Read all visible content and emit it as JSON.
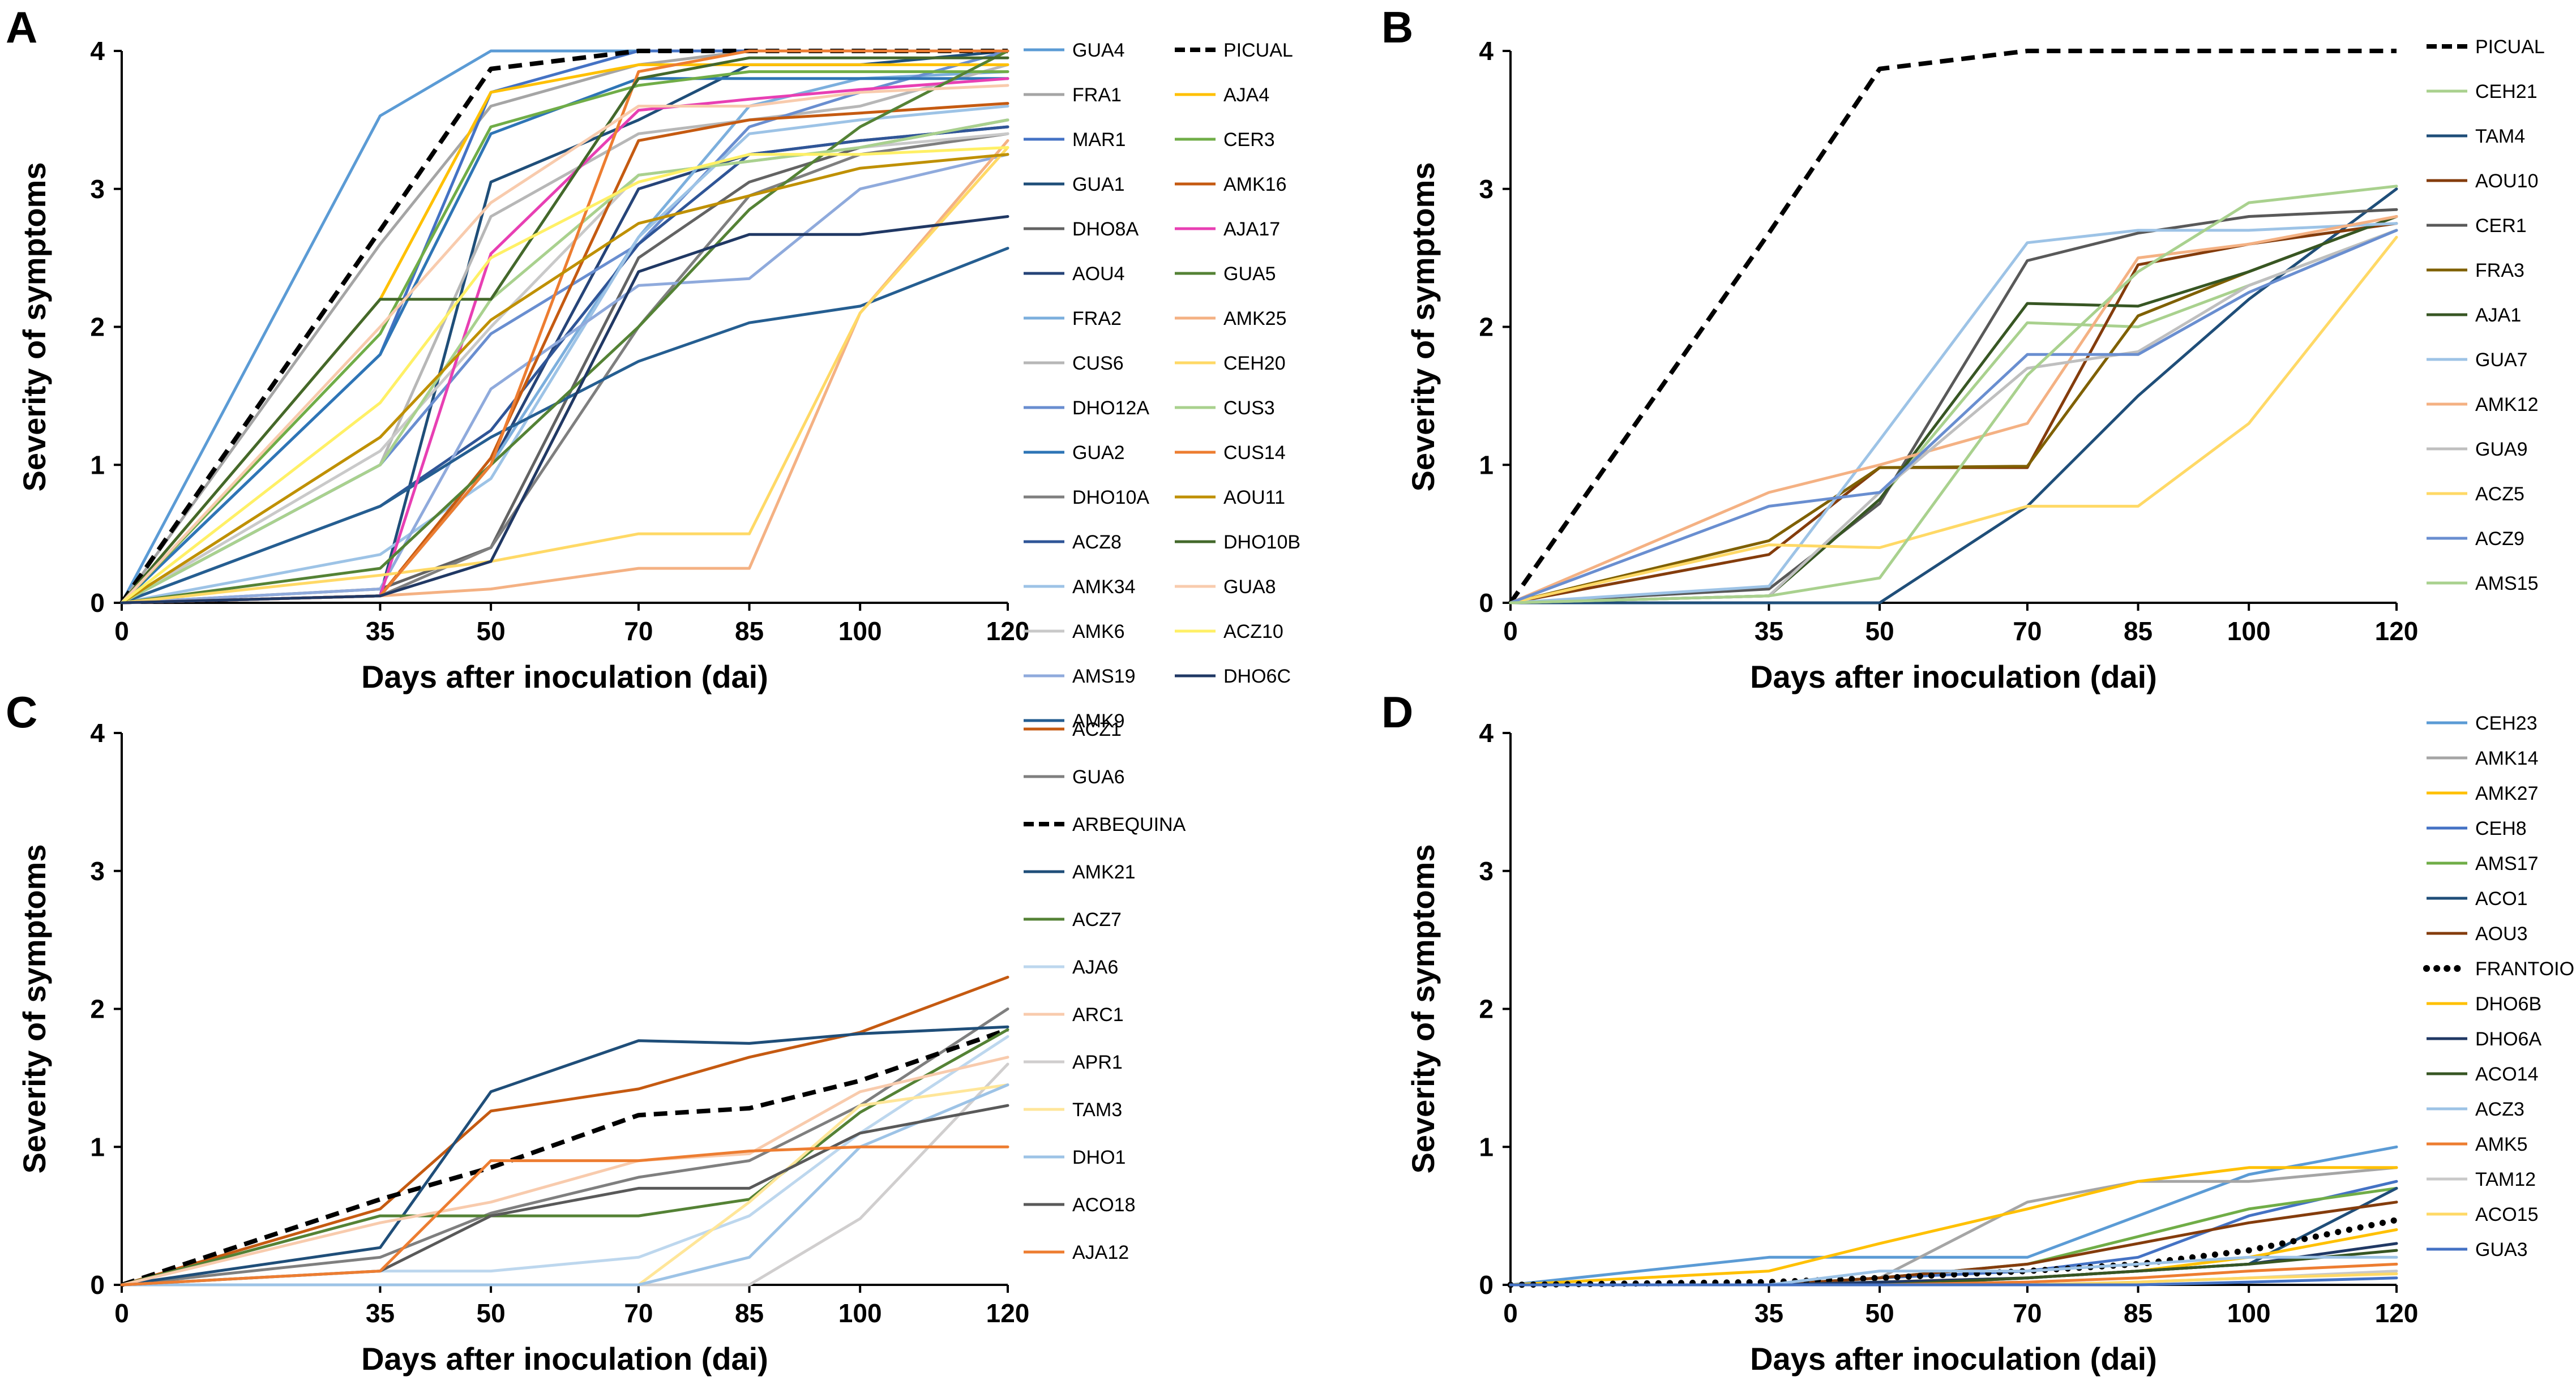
{
  "figure": {
    "xlabel": "Days after inoculation (dai)",
    "ylabel": "Severity of symptoms",
    "x_ticks": [
      "0",
      "35",
      "50",
      "70",
      "85",
      "100",
      "120"
    ],
    "y_ticks": [
      "0",
      "1",
      "2",
      "3",
      "4"
    ]
  },
  "chart_data": [
    {
      "panel": "A",
      "type": "line",
      "x": [
        0,
        35,
        50,
        70,
        85,
        100,
        120
      ],
      "ylim": [
        0,
        4
      ],
      "xlabel": "Days after inoculation (dai)",
      "ylabel": "Severity of symptoms",
      "legend_columns": 2,
      "series": [
        {
          "name": "GUA4",
          "color": "#5b9bd5",
          "values": [
            0,
            3.53,
            4,
            4,
            4,
            4,
            4
          ]
        },
        {
          "name": "FRA1",
          "color": "#a5a5a5",
          "values": [
            0,
            2.6,
            3.6,
            3.9,
            4,
            4,
            4
          ]
        },
        {
          "name": "MAR1",
          "color": "#4472c4",
          "values": [
            0,
            1.8,
            3.7,
            4,
            4,
            4,
            4
          ]
        },
        {
          "name": "GUA1",
          "color": "#1f4e79",
          "values": [
            0,
            0.05,
            3.05,
            3.5,
            3.9,
            3.9,
            4
          ]
        },
        {
          "name": "DHO8A",
          "color": "#636363",
          "values": [
            0,
            0.1,
            0.4,
            2.5,
            3.05,
            3.3,
            3.5
          ]
        },
        {
          "name": "AOU4",
          "color": "#264478",
          "values": [
            0,
            0.05,
            1.0,
            3.0,
            3.25,
            3.35,
            3.45
          ]
        },
        {
          "name": "FRA2",
          "color": "#7cafdd",
          "values": [
            0,
            0.05,
            1.0,
            2.65,
            3.6,
            3.8,
            3.85
          ]
        },
        {
          "name": "CUS6",
          "color": "#b7b7b7",
          "values": [
            0,
            1.0,
            2.8,
            3.4,
            3.5,
            3.6,
            3.9
          ]
        },
        {
          "name": "DHO12A",
          "color": "#698ed0",
          "values": [
            0,
            1.0,
            1.95,
            2.6,
            3.45,
            3.7,
            4
          ]
        },
        {
          "name": "GUA2",
          "color": "#2e75b6",
          "values": [
            0,
            1.8,
            3.4,
            3.8,
            3.8,
            3.8,
            3.8
          ]
        },
        {
          "name": "DHO10A",
          "color": "#7f7f7f",
          "values": [
            0,
            0.05,
            0.4,
            2.0,
            2.95,
            3.25,
            3.4
          ]
        },
        {
          "name": "ACZ8",
          "color": "#2f5597",
          "values": [
            0,
            0.7,
            1.25,
            2.6,
            3.25,
            3.35,
            3.45
          ]
        },
        {
          "name": "AMK34",
          "color": "#9dc3e6",
          "values": [
            0,
            0.35,
            0.9,
            2.65,
            3.4,
            3.5,
            3.6
          ]
        },
        {
          "name": "AMK6",
          "color": "#c9c9c9",
          "values": [
            0,
            1.1,
            2.0,
            3.1,
            3.2,
            3.3,
            3.4
          ]
        },
        {
          "name": "AMS19",
          "color": "#8faadc",
          "values": [
            0,
            0.1,
            1.55,
            2.3,
            2.35,
            3.0,
            3.25
          ]
        },
        {
          "name": "AMK9",
          "color": "#255e91",
          "values": [
            0,
            0.7,
            1.2,
            1.75,
            2.03,
            2.15,
            2.57
          ]
        },
        {
          "name": "PICUAL",
          "color": "#000000",
          "dash": "dashed",
          "values": [
            0,
            2.7,
            3.87,
            4,
            4,
            4,
            4
          ]
        },
        {
          "name": "AJA4",
          "color": "#ffc000",
          "values": [
            0,
            2.2,
            3.7,
            3.9,
            3.9,
            3.9,
            3.9
          ]
        },
        {
          "name": "CER3",
          "color": "#70ad47",
          "values": [
            0,
            1.95,
            3.45,
            3.75,
            3.85,
            3.85,
            3.85
          ]
        },
        {
          "name": "AMK16",
          "color": "#c55a11",
          "values": [
            0,
            0.05,
            1.05,
            3.35,
            3.5,
            3.55,
            3.62
          ]
        },
        {
          "name": "AJA17",
          "color": "#e83fb3",
          "values": [
            0,
            0.05,
            2.53,
            3.57,
            3.65,
            3.72,
            3.8
          ]
        },
        {
          "name": "GUA5",
          "color": "#548235",
          "values": [
            0,
            0.25,
            1.0,
            2.0,
            2.85,
            3.45,
            4
          ]
        },
        {
          "name": "AMK25",
          "color": "#f4b183",
          "values": [
            0,
            0.05,
            0.1,
            0.25,
            0.25,
            2.1,
            3.35
          ]
        },
        {
          "name": "CEH20",
          "color": "#ffd966",
          "values": [
            0,
            0.2,
            0.3,
            0.5,
            0.5,
            2.1,
            3.3
          ]
        },
        {
          "name": "CUS3",
          "color": "#a9d18e",
          "values": [
            0,
            1.0,
            2.2,
            3.1,
            3.2,
            3.3,
            3.5
          ]
        },
        {
          "name": "CUS14",
          "color": "#ed7d31",
          "values": [
            0,
            0.05,
            1.0,
            3.85,
            4,
            4,
            4
          ]
        },
        {
          "name": "AOU11",
          "color": "#bf9000",
          "values": [
            0,
            1.2,
            2.05,
            2.75,
            2.95,
            3.15,
            3.25
          ]
        },
        {
          "name": "DHO10B",
          "color": "#43682b",
          "values": [
            0,
            2.2,
            2.2,
            3.8,
            3.95,
            3.95,
            3.95
          ]
        },
        {
          "name": "GUA8",
          "color": "#f8cbad",
          "values": [
            0,
            2.0,
            2.9,
            3.6,
            3.6,
            3.7,
            3.75
          ]
        },
        {
          "name": "ACZ10",
          "color": "#fff066",
          "values": [
            0,
            1.45,
            2.5,
            3.05,
            3.25,
            3.25,
            3.3
          ]
        },
        {
          "name": "DHO6C",
          "color": "#203864",
          "values": [
            0,
            0.05,
            0.3,
            2.4,
            2.67,
            2.67,
            2.8
          ]
        }
      ]
    },
    {
      "panel": "B",
      "type": "line",
      "x": [
        0,
        35,
        50,
        70,
        85,
        100,
        120
      ],
      "ylim": [
        0,
        4
      ],
      "xlabel": "Days after inoculation (dai)",
      "ylabel": "Severity of symptoms",
      "legend_columns": 1,
      "series": [
        {
          "name": "PICUAL",
          "color": "#000000",
          "dash": "dashed",
          "values": [
            0,
            2.68,
            3.87,
            4,
            4,
            4,
            4
          ]
        },
        {
          "name": "CEH21",
          "color": "#a9d18e",
          "values": [
            0,
            0.05,
            0.75,
            2.03,
            2.0,
            2.3,
            2.7
          ]
        },
        {
          "name": "TAM4",
          "color": "#1f4e79",
          "values": [
            0,
            0,
            0,
            0.7,
            1.5,
            2.2,
            3.0
          ]
        },
        {
          "name": "AOU10",
          "color": "#843c0c",
          "values": [
            0,
            0.35,
            0.98,
            0.98,
            2.45,
            2.6,
            2.75
          ]
        },
        {
          "name": "CER1",
          "color": "#595959",
          "values": [
            0,
            0.1,
            0.72,
            2.48,
            2.68,
            2.8,
            2.85
          ]
        },
        {
          "name": "FRA3",
          "color": "#7f6000",
          "values": [
            0,
            0.45,
            0.98,
            0.99,
            2.08,
            2.4,
            2.8
          ]
        },
        {
          "name": "AJA1",
          "color": "#375623",
          "values": [
            0,
            0.05,
            0.75,
            2.17,
            2.15,
            2.4,
            2.8
          ]
        },
        {
          "name": "GUA7",
          "color": "#9dc3e6",
          "values": [
            0,
            0.12,
            1.18,
            2.61,
            2.7,
            2.7,
            2.75
          ]
        },
        {
          "name": "AMK12",
          "color": "#f4b183",
          "values": [
            0,
            0.8,
            1.0,
            1.3,
            2.5,
            2.6,
            2.8
          ]
        },
        {
          "name": "GUA9",
          "color": "#bfbfbf",
          "values": [
            0,
            0.05,
            0.8,
            1.7,
            1.82,
            2.3,
            2.7
          ]
        },
        {
          "name": "ACZ5",
          "color": "#ffd966",
          "values": [
            0,
            0.42,
            0.4,
            0.7,
            0.7,
            1.3,
            2.65
          ]
        },
        {
          "name": "ACZ9",
          "color": "#698ed0",
          "values": [
            0,
            0.7,
            0.8,
            1.8,
            1.8,
            2.25,
            2.7
          ]
        },
        {
          "name": "AMS15",
          "color": "#a9d18e",
          "values": [
            0,
            0.05,
            0.18,
            1.65,
            2.4,
            2.9,
            3.02
          ]
        }
      ]
    },
    {
      "panel": "C",
      "type": "line",
      "x": [
        0,
        35,
        50,
        70,
        85,
        100,
        120
      ],
      "ylim": [
        0,
        4
      ],
      "xlabel": "Days after inoculation (dai)",
      "ylabel": "Severity of symptoms",
      "legend_columns": 1,
      "series": [
        {
          "name": "ACZ1",
          "color": "#c55a11",
          "values": [
            0,
            0.55,
            1.26,
            1.42,
            1.65,
            1.83,
            2.23
          ]
        },
        {
          "name": "GUA6",
          "color": "#7f7f7f",
          "values": [
            0,
            0.2,
            0.52,
            0.78,
            0.9,
            1.3,
            2.0
          ]
        },
        {
          "name": "ARBEQUINA",
          "color": "#000000",
          "dash": "dashed",
          "values": [
            0,
            0.62,
            0.85,
            1.23,
            1.28,
            1.48,
            1.85
          ]
        },
        {
          "name": "AMK21",
          "color": "#1f4e79",
          "values": [
            0,
            0.27,
            1.4,
            1.77,
            1.75,
            1.82,
            1.87
          ]
        },
        {
          "name": "ACZ7",
          "color": "#548235",
          "values": [
            0,
            0.5,
            0.5,
            0.5,
            0.62,
            1.25,
            1.85
          ]
        },
        {
          "name": "AJA6",
          "color": "#bdd7ee",
          "values": [
            0,
            0.1,
            0.1,
            0.2,
            0.5,
            1.1,
            1.8
          ]
        },
        {
          "name": "ARC1",
          "color": "#f8cbad",
          "values": [
            0,
            0.45,
            0.6,
            0.9,
            0.95,
            1.4,
            1.65
          ]
        },
        {
          "name": "APR1",
          "color": "#d0cece",
          "values": [
            0,
            0,
            0,
            0,
            0,
            0.48,
            1.6
          ]
        },
        {
          "name": "TAM3",
          "color": "#ffe699",
          "values": [
            0,
            0,
            0,
            0,
            0.6,
            1.3,
            1.45
          ]
        },
        {
          "name": "DHO1",
          "color": "#9dc3e6",
          "values": [
            0,
            0,
            0,
            0,
            0.2,
            1.0,
            1.45
          ]
        },
        {
          "name": "ACO18",
          "color": "#595959",
          "values": [
            0,
            0.1,
            0.5,
            0.7,
            0.7,
            1.1,
            1.3
          ]
        },
        {
          "name": "AJA12",
          "color": "#ed7d31",
          "values": [
            0,
            0.1,
            0.9,
            0.9,
            0.97,
            1.0,
            1.0
          ]
        }
      ]
    },
    {
      "panel": "D",
      "type": "line",
      "x": [
        0,
        35,
        50,
        70,
        85,
        100,
        120
      ],
      "ylim": [
        0,
        4
      ],
      "xlabel": "Days after inoculation (dai)",
      "ylabel": "Severity of symptoms",
      "legend_columns": 1,
      "series": [
        {
          "name": "CEH23",
          "color": "#5b9bd5",
          "values": [
            0,
            0.2,
            0.2,
            0.2,
            0.5,
            0.8,
            1.0
          ]
        },
        {
          "name": "AMK14",
          "color": "#a5a5a5",
          "values": [
            0,
            0,
            0.05,
            0.6,
            0.75,
            0.75,
            0.85
          ]
        },
        {
          "name": "AMK27",
          "color": "#ffc000",
          "values": [
            0,
            0.1,
            0.3,
            0.55,
            0.75,
            0.85,
            0.85
          ]
        },
        {
          "name": "CEH8",
          "color": "#4472c4",
          "values": [
            0,
            0,
            0.05,
            0.1,
            0.2,
            0.5,
            0.75
          ]
        },
        {
          "name": "AMS17",
          "color": "#70ad47",
          "values": [
            0,
            0,
            0.05,
            0.15,
            0.35,
            0.55,
            0.7
          ]
        },
        {
          "name": "ACO1",
          "color": "#1f4e79",
          "values": [
            0,
            0,
            0,
            0.05,
            0.1,
            0.15,
            0.7
          ]
        },
        {
          "name": "AOU3",
          "color": "#843c0c",
          "values": [
            0,
            0,
            0.05,
            0.15,
            0.3,
            0.45,
            0.6
          ]
        },
        {
          "name": "FRANTOIO",
          "color": "#000000",
          "dash": "dotted",
          "values": [
            0,
            0.02,
            0.05,
            0.1,
            0.15,
            0.25,
            0.47
          ]
        },
        {
          "name": "DHO6B",
          "color": "#ffc000",
          "values": [
            0,
            0,
            0.02,
            0.05,
            0.1,
            0.2,
            0.4
          ]
        },
        {
          "name": "DHO6A",
          "color": "#203864",
          "values": [
            0,
            0,
            0.02,
            0.05,
            0.1,
            0.15,
            0.3
          ]
        },
        {
          "name": "ACO14",
          "color": "#375623",
          "values": [
            0,
            0,
            0,
            0.05,
            0.1,
            0.15,
            0.25
          ]
        },
        {
          "name": "ACZ3",
          "color": "#9dc3e6",
          "values": [
            0,
            0,
            0.1,
            0.1,
            0.15,
            0.2,
            0.2
          ]
        },
        {
          "name": "AMK5",
          "color": "#ed7d31",
          "values": [
            0,
            0,
            0,
            0.02,
            0.05,
            0.1,
            0.15
          ]
        },
        {
          "name": "TAM12",
          "color": "#c9c9c9",
          "values": [
            0,
            0,
            0,
            0,
            0.02,
            0.05,
            0.1
          ]
        },
        {
          "name": "ACO15",
          "color": "#ffd966",
          "values": [
            0,
            0,
            0,
            0,
            0.02,
            0.05,
            0.08
          ]
        },
        {
          "name": "GUA3",
          "color": "#4472c4",
          "values": [
            0,
            0,
            0,
            0,
            0,
            0.02,
            0.05
          ]
        }
      ]
    }
  ]
}
